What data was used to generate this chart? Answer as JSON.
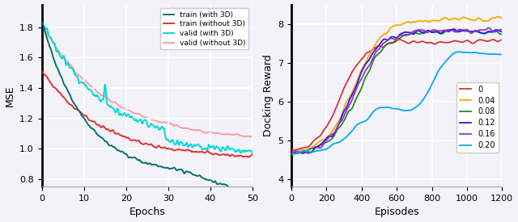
{
  "left": {
    "xlabel": "Epochs",
    "ylabel": "MSE",
    "xlim": [
      0,
      50
    ],
    "ylim": [
      0.75,
      1.95
    ],
    "yticks": [
      0.8,
      1.0,
      1.2,
      1.4,
      1.6,
      1.8
    ],
    "xticks": [
      0,
      10,
      20,
      30,
      40,
      50
    ],
    "lines": {
      "train_with_3d": {
        "color": "#007070",
        "label": "train (with 3D)",
        "lw": 1.4
      },
      "train_without_3d": {
        "color": "#e03030",
        "label": "train (without 3D)",
        "lw": 1.4
      },
      "valid_with_3d": {
        "color": "#00d8d8",
        "label": "valid (with 3D)",
        "lw": 1.4
      },
      "valid_without_3d": {
        "color": "#f4a0a0",
        "label": "valid (without 3D)",
        "lw": 1.4
      }
    }
  },
  "right": {
    "xlabel": "Episodes",
    "ylabel": "Docking Reward",
    "xlim": [
      0,
      1200
    ],
    "ylim": [
      3.8,
      8.5
    ],
    "yticks": [
      4,
      5,
      6,
      7,
      8
    ],
    "xticks": [
      0,
      200,
      400,
      600,
      800,
      1000,
      1200
    ],
    "lines": {
      "0": {
        "color": "#e03030",
        "label": "0",
        "lw": 1.3
      },
      "0.04": {
        "color": "#ffa500",
        "label": "0.04",
        "lw": 1.3
      },
      "0.08": {
        "color": "#228B22",
        "label": "0.08",
        "lw": 1.3
      },
      "0.12": {
        "color": "#2020e0",
        "label": "0.12",
        "lw": 1.3
      },
      "0.16": {
        "color": "#9932CC",
        "label": "0.16",
        "lw": 1.3
      },
      "0.20": {
        "color": "#00aaff",
        "label": "0.20",
        "lw": 1.3
      }
    }
  },
  "bg_color": "#f2f2f8",
  "grid_color": "white",
  "legend_bg": "white"
}
